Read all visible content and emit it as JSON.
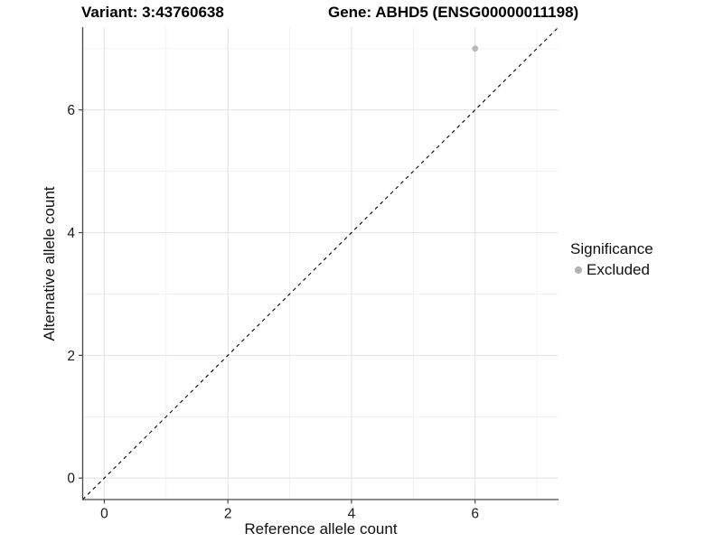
{
  "titles": {
    "variant": "Variant: 3:43760638",
    "gene": "Gene: ABHD5 (ENSG00000011198)"
  },
  "legend": {
    "title": "Significance",
    "items": [
      {
        "label": "Excluded",
        "color": "#b3b3b3"
      }
    ]
  },
  "chart_data": {
    "type": "scatter",
    "title": "Variant: 3:43760638   Gene: ABHD5 (ENSG00000011198)",
    "xlabel": "Reference allele count",
    "ylabel": "Alternative allele count",
    "xlim": [
      -0.35,
      7.35
    ],
    "ylim": [
      -0.35,
      7.35
    ],
    "xticks": [
      0,
      2,
      4,
      6
    ],
    "yticks": [
      0,
      2,
      4,
      6
    ],
    "x_minor_gridlines": [
      1,
      3,
      5,
      7
    ],
    "y_minor_gridlines": [
      1,
      3,
      5,
      7
    ],
    "grid": true,
    "legend_position": "right",
    "series": [
      {
        "name": "Excluded",
        "color": "#b9b9b9",
        "points": [
          {
            "x": 6,
            "y": 7
          }
        ]
      }
    ],
    "reference_line": {
      "kind": "identity",
      "slope": 1,
      "intercept": 0,
      "style": "dashed",
      "color": "#000000"
    },
    "colors": {
      "major_grid": "#e4e4e4",
      "minor_grid": "#efefef",
      "axis_line": "#474747",
      "tick_mark": "#474747",
      "tick_label": "#1a1a1a",
      "panel_background": "#ffffff"
    }
  }
}
